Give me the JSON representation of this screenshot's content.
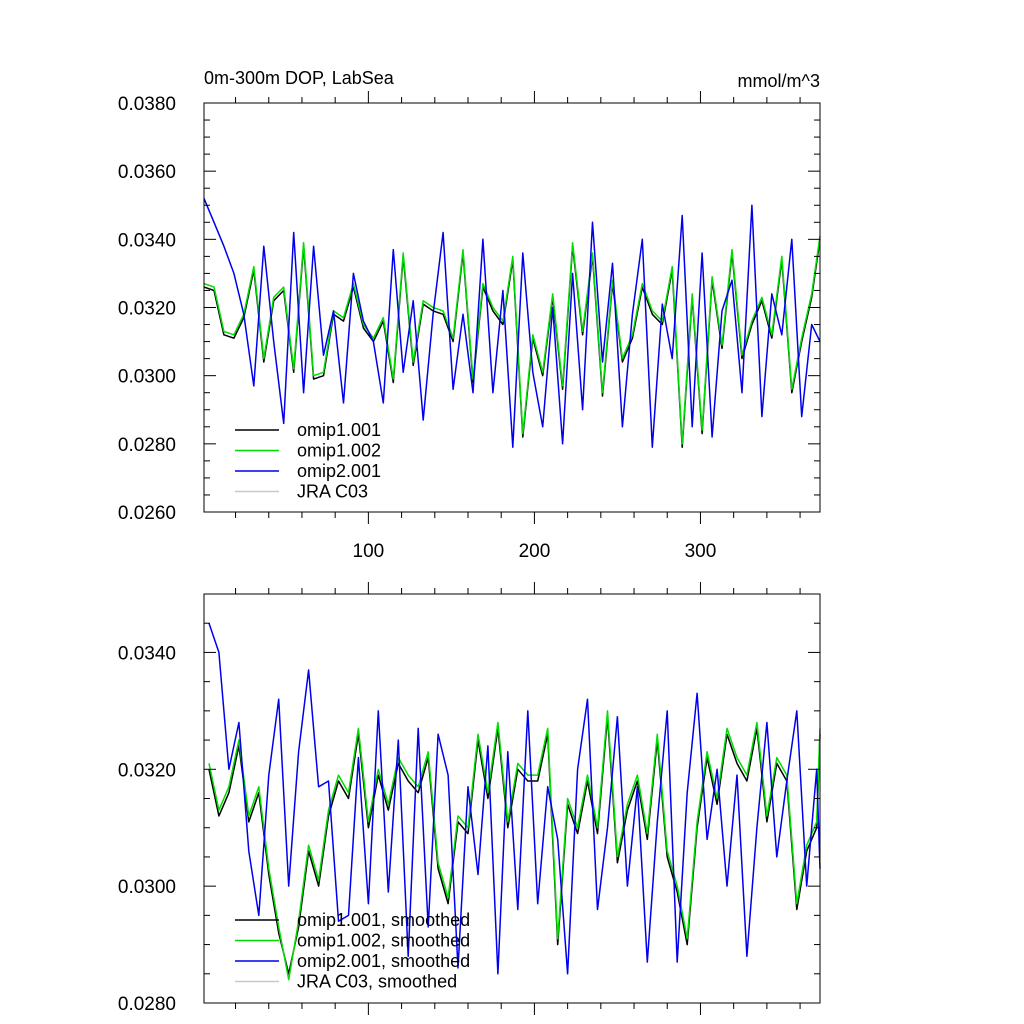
{
  "chart_data": [
    {
      "type": "line",
      "title": "0m-300m DOP, LabSea",
      "units": "mmol/m^3",
      "xlim": [
        1,
        372
      ],
      "ylim": [
        0.026,
        0.038
      ],
      "x_ticks": [
        100,
        200,
        300
      ],
      "x_tick_labels": [
        "100",
        "200",
        "300"
      ],
      "y_ticks": [
        0.026,
        0.028,
        0.03,
        0.032,
        0.034,
        0.036,
        0.038
      ],
      "y_tick_labels": [
        "0.0260",
        "0.0280",
        "0.0300",
        "0.0320",
        "0.0340",
        "0.0360",
        "0.0380"
      ],
      "legend_position": "bottom-left",
      "series": [
        {
          "name": "omip1.001",
          "color": "#000000",
          "x_start": 1,
          "x_step": 6,
          "values": [
            0.0326,
            0.0325,
            0.0312,
            0.0311,
            0.0317,
            0.0331,
            0.0304,
            0.0322,
            0.0325,
            0.0301,
            0.0338,
            0.0299,
            0.03,
            0.0318,
            0.0316,
            0.0326,
            0.0314,
            0.031,
            0.0316,
            0.0298,
            0.0335,
            0.0303,
            0.0321,
            0.0319,
            0.0318,
            0.031,
            0.0336,
            0.0298,
            0.0326,
            0.0319,
            0.0315,
            0.0334,
            0.0282,
            0.0311,
            0.03,
            0.0323,
            0.0296,
            0.0338,
            0.0312,
            0.0335,
            0.0294,
            0.0327,
            0.0304,
            0.0311,
            0.0326,
            0.0318,
            0.0315,
            0.0331,
            0.0279,
            0.0323,
            0.0283,
            0.0328,
            0.0308,
            0.0336,
            0.0305,
            0.0315,
            0.0322,
            0.0311,
            0.0334,
            0.0295,
            0.031,
            0.0323,
            0.034
          ]
        },
        {
          "name": "omip1.002",
          "color": "#00dd00",
          "x_start": 1,
          "x_step": 6,
          "values": [
            0.0327,
            0.0326,
            0.0313,
            0.0312,
            0.0318,
            0.0332,
            0.0305,
            0.0323,
            0.0326,
            0.0302,
            0.0339,
            0.03,
            0.0301,
            0.0319,
            0.0317,
            0.0327,
            0.0315,
            0.0311,
            0.0317,
            0.0299,
            0.0336,
            0.0304,
            0.0322,
            0.032,
            0.0319,
            0.0311,
            0.0337,
            0.0299,
            0.0327,
            0.032,
            0.0316,
            0.0335,
            0.0283,
            0.0312,
            0.0301,
            0.0324,
            0.0297,
            0.0339,
            0.0313,
            0.0336,
            0.0295,
            0.0328,
            0.0305,
            0.0312,
            0.0327,
            0.0319,
            0.0316,
            0.0332,
            0.028,
            0.0324,
            0.0284,
            0.0329,
            0.0309,
            0.0337,
            0.0306,
            0.0316,
            0.0323,
            0.0312,
            0.0335,
            0.0296,
            0.0311,
            0.0324,
            0.0341
          ]
        },
        {
          "name": "omip2.001",
          "color": "#0000ee",
          "x_start": 1,
          "x_step": 6,
          "values": [
            0.0352,
            0.0345,
            0.0338,
            0.033,
            0.0318,
            0.0297,
            0.0338,
            0.031,
            0.0286,
            0.0342,
            0.0295,
            0.0338,
            0.0306,
            0.0319,
            0.0292,
            0.033,
            0.0316,
            0.031,
            0.0292,
            0.0337,
            0.0301,
            0.0322,
            0.0287,
            0.0318,
            0.0342,
            0.0296,
            0.0318,
            0.0295,
            0.034,
            0.0295,
            0.0325,
            0.0279,
            0.0336,
            0.0301,
            0.0285,
            0.032,
            0.028,
            0.033,
            0.029,
            0.0345,
            0.0304,
            0.0333,
            0.0285,
            0.0318,
            0.034,
            0.0279,
            0.0321,
            0.0305,
            0.0347,
            0.0285,
            0.0336,
            0.0282,
            0.0319,
            0.0328,
            0.0295,
            0.035,
            0.0288,
            0.0324,
            0.0312,
            0.034,
            0.0288,
            0.0315,
            0.031
          ]
        },
        {
          "name": "JRA C03",
          "color": "#c8c8c8",
          "x_start": 1,
          "x_step": 6,
          "values": []
        }
      ]
    },
    {
      "type": "line",
      "xlim": [
        1,
        372
      ],
      "ylim": [
        0.028,
        0.035
      ],
      "x_ticks": [
        100,
        200,
        300
      ],
      "x_tick_labels": [],
      "y_ticks": [
        0.028,
        0.03,
        0.032,
        0.034
      ],
      "y_tick_labels": [
        "0.0280",
        "0.0300",
        "0.0320",
        "0.0340"
      ],
      "legend_position": "bottom-left",
      "series": [
        {
          "name": "omip1.001, smoothed",
          "color": "#000000",
          "x_start": 4,
          "x_step": 6,
          "values": [
            0.032,
            0.0312,
            0.0316,
            0.0324,
            0.0311,
            0.0316,
            0.0302,
            0.0292,
            0.0285,
            0.0293,
            0.0306,
            0.03,
            0.0312,
            0.0318,
            0.0315,
            0.0326,
            0.031,
            0.0319,
            0.0313,
            0.0321,
            0.0318,
            0.0316,
            0.0322,
            0.0303,
            0.0297,
            0.0311,
            0.0309,
            0.0325,
            0.0315,
            0.0327,
            0.031,
            0.032,
            0.0318,
            0.0318,
            0.0326,
            0.029,
            0.0314,
            0.0309,
            0.0318,
            0.0309,
            0.0329,
            0.0304,
            0.0313,
            0.0318,
            0.0308,
            0.0325,
            0.0305,
            0.0299,
            0.029,
            0.031,
            0.0322,
            0.0314,
            0.0326,
            0.0321,
            0.0318,
            0.0327,
            0.0311,
            0.0321,
            0.0318,
            0.0296,
            0.0306,
            0.031,
            0.0326
          ]
        },
        {
          "name": "omip1.002, smoothed",
          "color": "#00dd00",
          "x_start": 4,
          "x_step": 6,
          "values": [
            0.0321,
            0.0313,
            0.0317,
            0.0325,
            0.0312,
            0.0317,
            0.0303,
            0.0293,
            0.0284,
            0.0294,
            0.0307,
            0.0301,
            0.0313,
            0.0319,
            0.0316,
            0.0327,
            0.0311,
            0.032,
            0.0314,
            0.0322,
            0.0319,
            0.0317,
            0.0323,
            0.0304,
            0.0298,
            0.0312,
            0.031,
            0.0326,
            0.0316,
            0.0328,
            0.0311,
            0.0321,
            0.0319,
            0.0319,
            0.0327,
            0.0291,
            0.0315,
            0.031,
            0.0319,
            0.031,
            0.033,
            0.0305,
            0.0314,
            0.0319,
            0.0309,
            0.0326,
            0.0306,
            0.03,
            0.0291,
            0.0311,
            0.0323,
            0.0315,
            0.0327,
            0.0322,
            0.0319,
            0.0328,
            0.0312,
            0.0322,
            0.0319,
            0.0297,
            0.0307,
            0.0311,
            0.0327
          ]
        },
        {
          "name": "omip2.001, smoothed",
          "color": "#0000ee",
          "x_start": 4,
          "x_step": 6,
          "values": [
            0.0345,
            0.034,
            0.032,
            0.0328,
            0.0306,
            0.0295,
            0.0319,
            0.0332,
            0.03,
            0.0323,
            0.0337,
            0.0317,
            0.0318,
            0.0294,
            0.0295,
            0.0322,
            0.0297,
            0.033,
            0.0299,
            0.0325,
            0.0288,
            0.0327,
            0.0293,
            0.0326,
            0.0319,
            0.0286,
            0.0317,
            0.0302,
            0.0324,
            0.0285,
            0.0323,
            0.0296,
            0.033,
            0.0297,
            0.0317,
            0.0308,
            0.0285,
            0.032,
            0.0332,
            0.0296,
            0.031,
            0.0329,
            0.03,
            0.0317,
            0.0287,
            0.0311,
            0.033,
            0.0287,
            0.0316,
            0.0333,
            0.0308,
            0.032,
            0.03,
            0.0319,
            0.0288,
            0.031,
            0.0328,
            0.0305,
            0.0318,
            0.033,
            0.03,
            0.032,
            0.0303
          ]
        },
        {
          "name": "JRA C03, smoothed",
          "color": "#c8c8c8",
          "x_start": 4,
          "x_step": 6,
          "values": []
        }
      ]
    }
  ]
}
